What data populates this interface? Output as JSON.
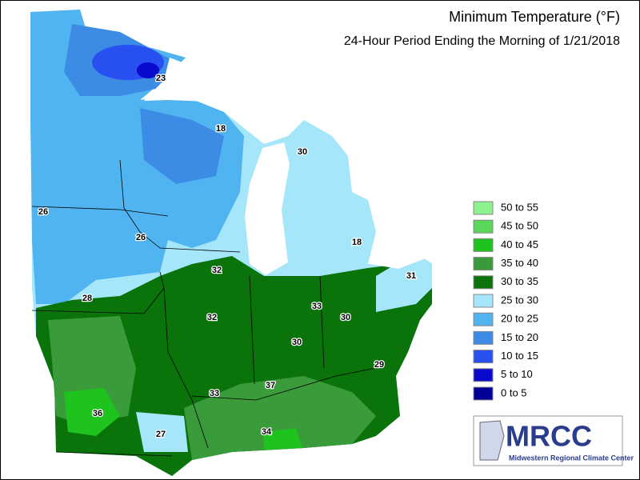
{
  "header": {
    "title": "Minimum Temperature (°F)",
    "subtitle": "24-Hour Period Ending the Morning of 1/21/2018"
  },
  "legend": [
    {
      "label": "50 to 55",
      "color": "#8cf08c"
    },
    {
      "label": "45 to 50",
      "color": "#5ad75a"
    },
    {
      "label": "40 to 45",
      "color": "#1ec31e"
    },
    {
      "label": "35 to 40",
      "color": "#3a9b3a"
    },
    {
      "label": "30 to 35",
      "color": "#0a730a"
    },
    {
      "label": "25 to 30",
      "color": "#a5e6fa"
    },
    {
      "label": "20 to 25",
      "color": "#50b4f0"
    },
    {
      "label": "15 to 20",
      "color": "#3c8ce6"
    },
    {
      "label": "10 to 15",
      "color": "#2850f0"
    },
    {
      "label": "5 to 10",
      "color": "#0a0acd"
    },
    {
      "label": "0 to 5",
      "color": "#000096"
    }
  ],
  "stations": [
    23,
    18,
    30,
    26,
    26,
    18,
    32,
    28,
    31,
    33,
    32,
    30,
    30,
    29,
    37,
    33,
    36,
    27,
    34
  ],
  "logo": {
    "name": "MRCC",
    "subtitle": "Midwestern Regional Climate Center"
  }
}
